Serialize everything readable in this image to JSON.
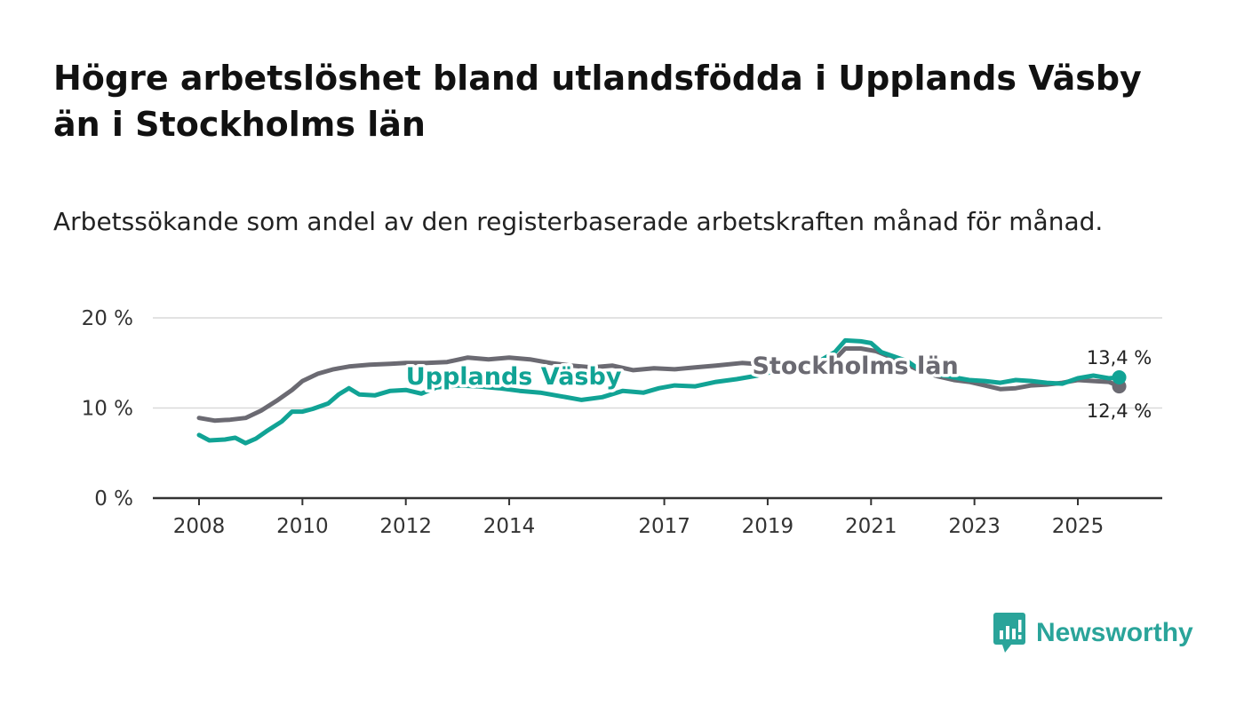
{
  "title": "Högre arbetslöshet bland utlandsfödda i Upplands Väsby än i Stockholms län",
  "subtitle": "Arbetssökande som andel av den registerbaserade arbetskraften månad för månad.",
  "brand": {
    "name": "Newsworthy",
    "color": "#2aa49a",
    "icon": "bar-chart-speech-bubble-icon"
  },
  "chart_data": {
    "type": "line",
    "title": "Högre arbetslöshet bland utlandsfödda i Upplands Väsby än i Stockholms län",
    "subtitle": "Arbetssökande som andel av den registerbaserade arbetskraften månad för månad.",
    "xlabel": "",
    "ylabel": "",
    "xlim": [
      2007.6,
      2026.6
    ],
    "ylim": [
      0,
      20
    ],
    "grid": true,
    "y_ticks": [
      {
        "value": 0,
        "label": "0 %"
      },
      {
        "value": 10,
        "label": "10 %"
      },
      {
        "value": 20,
        "label": "20 %"
      }
    ],
    "x_ticks": [
      {
        "value": 2008,
        "label": "2008"
      },
      {
        "value": 2010,
        "label": "2010"
      },
      {
        "value": 2012,
        "label": "2012"
      },
      {
        "value": 2014,
        "label": "2014"
      },
      {
        "value": 2017,
        "label": "2017"
      },
      {
        "value": 2019,
        "label": "2019"
      },
      {
        "value": 2021,
        "label": "2021"
      },
      {
        "value": 2023,
        "label": "2023"
      },
      {
        "value": 2025,
        "label": "2025"
      }
    ],
    "series": [
      {
        "name": "Stockholms län",
        "color": "#6b6a72",
        "label_at": {
          "x": 2018.7,
          "y": 13.8
        },
        "points": [
          [
            2008.0,
            8.9
          ],
          [
            2008.3,
            8.6
          ],
          [
            2008.6,
            8.7
          ],
          [
            2008.9,
            8.9
          ],
          [
            2009.2,
            9.7
          ],
          [
            2009.5,
            10.8
          ],
          [
            2009.8,
            12.0
          ],
          [
            2010.0,
            13.0
          ],
          [
            2010.3,
            13.8
          ],
          [
            2010.6,
            14.3
          ],
          [
            2010.9,
            14.6
          ],
          [
            2011.3,
            14.8
          ],
          [
            2011.7,
            14.9
          ],
          [
            2012.0,
            15.0
          ],
          [
            2012.4,
            15.0
          ],
          [
            2012.8,
            15.1
          ],
          [
            2013.2,
            15.6
          ],
          [
            2013.6,
            15.4
          ],
          [
            2014.0,
            15.6
          ],
          [
            2014.4,
            15.4
          ],
          [
            2014.8,
            15.0
          ],
          [
            2015.2,
            14.7
          ],
          [
            2015.6,
            14.5
          ],
          [
            2016.0,
            14.7
          ],
          [
            2016.4,
            14.2
          ],
          [
            2016.8,
            14.4
          ],
          [
            2017.2,
            14.3
          ],
          [
            2017.6,
            14.5
          ],
          [
            2018.0,
            14.7
          ],
          [
            2018.5,
            15.0
          ],
          [
            2019.0,
            14.8
          ],
          [
            2019.5,
            14.7
          ],
          [
            2020.0,
            14.9
          ],
          [
            2020.3,
            15.4
          ],
          [
            2020.5,
            16.6
          ],
          [
            2020.8,
            16.6
          ],
          [
            2021.1,
            16.3
          ],
          [
            2021.4,
            15.6
          ],
          [
            2021.7,
            14.8
          ],
          [
            2022.0,
            14.0
          ],
          [
            2022.3,
            13.5
          ],
          [
            2022.6,
            13.1
          ],
          [
            2022.9,
            12.9
          ],
          [
            2023.2,
            12.5
          ],
          [
            2023.5,
            12.1
          ],
          [
            2023.8,
            12.2
          ],
          [
            2024.1,
            12.5
          ],
          [
            2024.4,
            12.6
          ],
          [
            2024.7,
            12.8
          ],
          [
            2025.0,
            13.1
          ],
          [
            2025.3,
            13.0
          ],
          [
            2025.6,
            12.9
          ],
          [
            2025.8,
            12.4
          ]
        ],
        "end_label": "12,4 %"
      },
      {
        "name": "Upplands Väsby",
        "color": "#11a395",
        "label_at": {
          "x": 2012.0,
          "y": 12.6
        },
        "points": [
          [
            2008.0,
            7.0
          ],
          [
            2008.2,
            6.4
          ],
          [
            2008.5,
            6.5
          ],
          [
            2008.7,
            6.7
          ],
          [
            2008.9,
            6.1
          ],
          [
            2009.1,
            6.6
          ],
          [
            2009.3,
            7.4
          ],
          [
            2009.6,
            8.5
          ],
          [
            2009.8,
            9.6
          ],
          [
            2010.0,
            9.6
          ],
          [
            2010.2,
            9.9
          ],
          [
            2010.5,
            10.5
          ],
          [
            2010.7,
            11.5
          ],
          [
            2010.9,
            12.2
          ],
          [
            2011.1,
            11.5
          ],
          [
            2011.4,
            11.4
          ],
          [
            2011.7,
            11.9
          ],
          [
            2012.0,
            12.0
          ],
          [
            2012.3,
            11.6
          ],
          [
            2012.6,
            12.3
          ],
          [
            2013.0,
            12.5
          ],
          [
            2013.4,
            12.4
          ],
          [
            2013.8,
            12.2
          ],
          [
            2014.2,
            11.9
          ],
          [
            2014.6,
            11.7
          ],
          [
            2015.0,
            11.3
          ],
          [
            2015.4,
            10.9
          ],
          [
            2015.8,
            11.2
          ],
          [
            2016.2,
            11.9
          ],
          [
            2016.6,
            11.7
          ],
          [
            2016.9,
            12.2
          ],
          [
            2017.2,
            12.5
          ],
          [
            2017.6,
            12.4
          ],
          [
            2018.0,
            12.9
          ],
          [
            2018.4,
            13.2
          ],
          [
            2018.8,
            13.6
          ],
          [
            2019.2,
            14.2
          ],
          [
            2019.6,
            14.9
          ],
          [
            2020.0,
            15.2
          ],
          [
            2020.3,
            16.2
          ],
          [
            2020.5,
            17.5
          ],
          [
            2020.8,
            17.4
          ],
          [
            2021.0,
            17.2
          ],
          [
            2021.2,
            16.2
          ],
          [
            2021.4,
            15.8
          ],
          [
            2021.7,
            15.2
          ],
          [
            2022.0,
            14.0
          ],
          [
            2022.3,
            13.7
          ],
          [
            2022.6,
            13.4
          ],
          [
            2022.9,
            13.1
          ],
          [
            2023.2,
            13.0
          ],
          [
            2023.5,
            12.8
          ],
          [
            2023.8,
            13.1
          ],
          [
            2024.1,
            13.0
          ],
          [
            2024.4,
            12.8
          ],
          [
            2024.7,
            12.7
          ],
          [
            2025.0,
            13.3
          ],
          [
            2025.3,
            13.6
          ],
          [
            2025.6,
            13.3
          ],
          [
            2025.8,
            13.4
          ]
        ],
        "end_label": "13,4 %"
      }
    ]
  }
}
